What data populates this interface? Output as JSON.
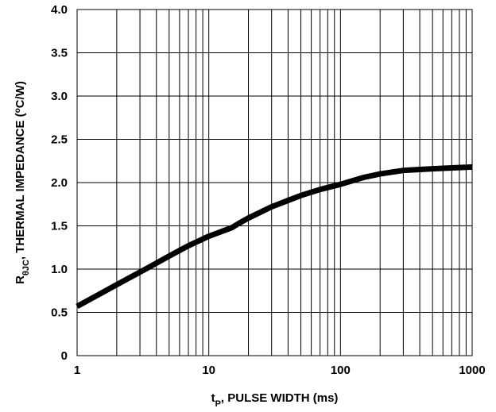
{
  "chart_data": {
    "type": "line",
    "title": "",
    "xlabel": {
      "prefix": "t",
      "subscript": "P",
      "text": ", PULSE WIDTH (ms)"
    },
    "ylabel": {
      "prefix": "R",
      "subscript": "θJC",
      "text": ", THERMAL IMPEDANCE (",
      "sup": "o",
      "suffix": "C/W)"
    },
    "x_scale": "log",
    "xlim": [
      1,
      1000
    ],
    "ylim": [
      0,
      4.0
    ],
    "x_ticks": [
      1,
      10,
      100,
      1000
    ],
    "x_tick_labels": [
      "1",
      "10",
      "100",
      "1000"
    ],
    "y_ticks": [
      0,
      0.5,
      1.0,
      1.5,
      2.0,
      2.5,
      3.0,
      3.5,
      4.0
    ],
    "y_tick_labels": [
      "0",
      "0.5",
      "1.0",
      "1.5",
      "2.0",
      "2.5",
      "3.0",
      "3.5",
      "4.0"
    ],
    "grid": true,
    "line_color": "#000000",
    "series": [
      {
        "x": [
          1,
          2,
          3.5,
          5,
          7,
          10,
          15,
          17,
          20,
          30,
          50,
          70,
          100,
          150,
          200,
          300,
          500,
          700,
          1000
        ],
        "y": [
          0.57,
          0.82,
          1.02,
          1.15,
          1.27,
          1.38,
          1.48,
          1.53,
          1.59,
          1.72,
          1.85,
          1.92,
          1.98,
          2.06,
          2.1,
          2.14,
          2.16,
          2.17,
          2.18
        ]
      }
    ]
  }
}
